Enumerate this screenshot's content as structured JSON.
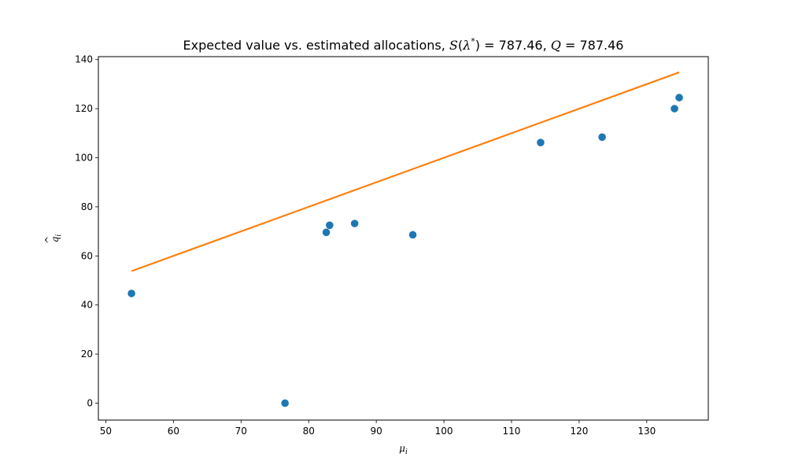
{
  "chart_data": {
    "type": "scatter",
    "title": {
      "prefix": "Expected value vs. estimated allocations, ",
      "s_symbol": "S",
      "lambda_symbol": "λ",
      "star": "*",
      "s_value": "787.46",
      "q_symbol": "Q",
      "q_value": "787.46"
    },
    "xlabel": {
      "base": "μ",
      "sub": "i"
    },
    "ylabel": {
      "base": "q",
      "hat": "^",
      "sub": "i"
    },
    "xlim": [
      48.9,
      139.1
    ],
    "ylim": [
      -6.9,
      141.2
    ],
    "xticks": [
      50,
      60,
      70,
      80,
      90,
      100,
      110,
      120,
      130
    ],
    "yticks": [
      0,
      20,
      40,
      60,
      80,
      100,
      120,
      140
    ],
    "series": [
      {
        "kind": "scatter",
        "color": "#1f77b4",
        "points": [
          [
            53.8,
            44.7
          ],
          [
            76.5,
            0.0
          ],
          [
            82.6,
            69.6
          ],
          [
            83.1,
            72.5
          ],
          [
            86.8,
            73.2
          ],
          [
            95.4,
            68.6
          ],
          [
            114.3,
            106.2
          ],
          [
            123.4,
            108.4
          ],
          [
            134.1,
            120.0
          ],
          [
            134.8,
            124.5
          ]
        ]
      },
      {
        "kind": "line",
        "color": "#ff7f0e",
        "points": [
          [
            53.8,
            53.8
          ],
          [
            134.8,
            134.8
          ]
        ]
      }
    ]
  }
}
